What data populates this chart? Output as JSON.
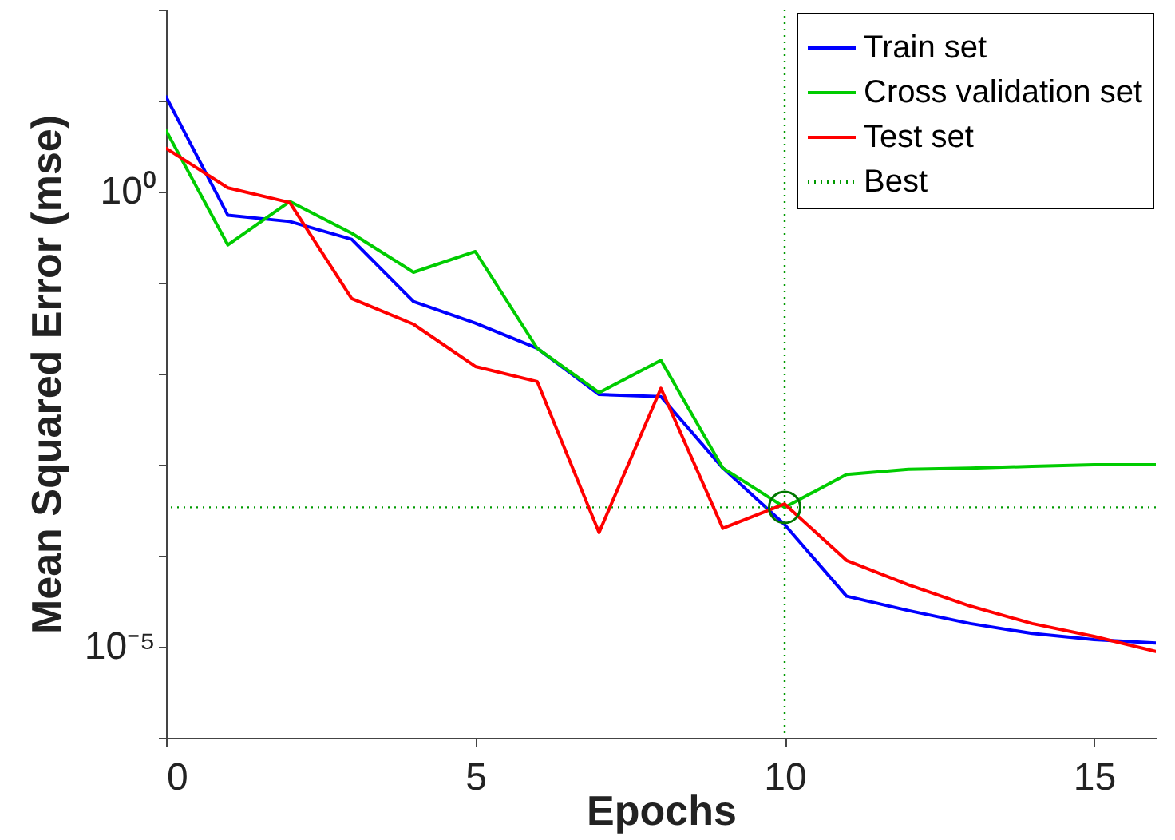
{
  "chart_data": {
    "type": "line",
    "xlabel": "Epochs",
    "ylabel": "Mean Squared Error  (mse)",
    "x": [
      0,
      1,
      2,
      3,
      4,
      5,
      6,
      7,
      8,
      9,
      10,
      11,
      12,
      13,
      14,
      15,
      16
    ],
    "series": [
      {
        "name": "Train set",
        "color": "#0000ff",
        "values": [
          11,
          0.55,
          0.47,
          0.3,
          0.062,
          0.036,
          0.019,
          0.0059,
          0.0056,
          0.00092,
          0.00022,
          3.6e-05,
          2.5e-05,
          1.8e-05,
          1.4e-05,
          1.2e-05,
          1.1e-05
        ]
      },
      {
        "name": "Cross validation set",
        "color": "#00cc00",
        "values": [
          4.7,
          0.26,
          0.78,
          0.35,
          0.13,
          0.22,
          0.019,
          0.0062,
          0.014,
          0.00092,
          0.00034,
          0.00078,
          0.00089,
          0.00092,
          0.00096,
          0.001,
          0.001
        ]
      },
      {
        "name": "Test set",
        "color": "#ff0000",
        "values": [
          3.0,
          1.1,
          0.76,
          0.067,
          0.035,
          0.012,
          0.0082,
          0.00018,
          0.0069,
          0.0002,
          0.00037,
          8.9e-05,
          4.8e-05,
          2.8e-05,
          1.8e-05,
          1.3e-05,
          8.9e-06
        ]
      },
      {
        "type": "scatter",
        "marker": "circle",
        "color": "#007700",
        "x": [
          10
        ],
        "values": [
          0.00034
        ]
      }
    ],
    "ref_lines": [
      {
        "axis": "x",
        "value": 10,
        "label": "Best",
        "color": "#009900",
        "line_style": "dotted"
      },
      {
        "axis": "y",
        "value": 0.00034,
        "color": "#009900",
        "line_style": "dotted"
      }
    ],
    "log": true,
    "grid": false,
    "legend": "top right",
    "line_style": "solid",
    "xlim": [
      0,
      16
    ],
    "xticks": [
      0,
      5,
      10,
      15
    ],
    "ylim": [
      1e-06,
      100
    ],
    "yticks": [
      {
        "value": 100,
        "label": null
      },
      {
        "value": 10,
        "label": null
      },
      {
        "value": 1,
        "label": "10⁰"
      },
      {
        "value": 0.1,
        "label": null
      },
      {
        "value": 0.01,
        "label": null
      },
      {
        "value": 0.001,
        "label": null
      },
      {
        "value": 0.0001,
        "label": null
      },
      {
        "value": 1e-05,
        "label": "10⁻⁵"
      },
      {
        "value": 1e-06,
        "label": null
      }
    ]
  }
}
